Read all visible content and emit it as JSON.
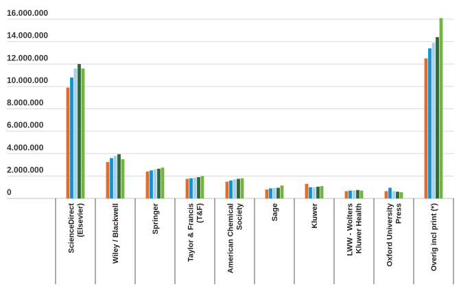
{
  "chart_data": {
    "type": "bar",
    "title": "",
    "xlabel": "",
    "ylabel": "",
    "ylim": [
      0,
      16000000
    ],
    "yticks": [
      0,
      2000000,
      4000000,
      6000000,
      8000000,
      10000000,
      12000000,
      14000000,
      16000000
    ],
    "ytick_labels": [
      "0",
      "2.000.000",
      "4.000.000",
      "6.000.000",
      "8.000.000",
      "10.000.000",
      "12.000.000",
      "14.000.000",
      "16.000.000"
    ],
    "grid": true,
    "legend": "none",
    "categories": [
      [
        "ScienceDirect",
        "(Elsevier)"
      ],
      [
        "Wiley / Blackwell"
      ],
      [
        "Springer"
      ],
      [
        "Taylor & Francis",
        "(T&F)"
      ],
      [
        "American Chemical",
        "Society"
      ],
      [
        "Sage"
      ],
      [
        "Kluwer"
      ],
      [
        "LWW - Wolters",
        "Kluwer Health"
      ],
      [
        "Oxford University",
        "Press"
      ],
      [
        "Overig incl print (*)"
      ]
    ],
    "series": [
      {
        "color": "#e36c2c",
        "values": [
          9900000,
          3250000,
          2400000,
          1750000,
          1500000,
          800000,
          1300000,
          650000,
          650000,
          12500000
        ]
      },
      {
        "color": "#1b8fc9",
        "values": [
          10800000,
          3600000,
          2500000,
          1800000,
          1600000,
          900000,
          1000000,
          700000,
          950000,
          13400000
        ]
      },
      {
        "color": "#a9cfeb",
        "values": [
          11600000,
          3800000,
          2600000,
          1850000,
          1700000,
          950000,
          1000000,
          720000,
          650000,
          13900000
        ]
      },
      {
        "color": "#2d6a31",
        "values": [
          12000000,
          3950000,
          2650000,
          1900000,
          1750000,
          950000,
          1050000,
          750000,
          600000,
          14400000
        ]
      },
      {
        "color": "#72b43f",
        "values": [
          11600000,
          3500000,
          2750000,
          2000000,
          1800000,
          1150000,
          1100000,
          700000,
          550000,
          16100000
        ]
      }
    ]
  }
}
